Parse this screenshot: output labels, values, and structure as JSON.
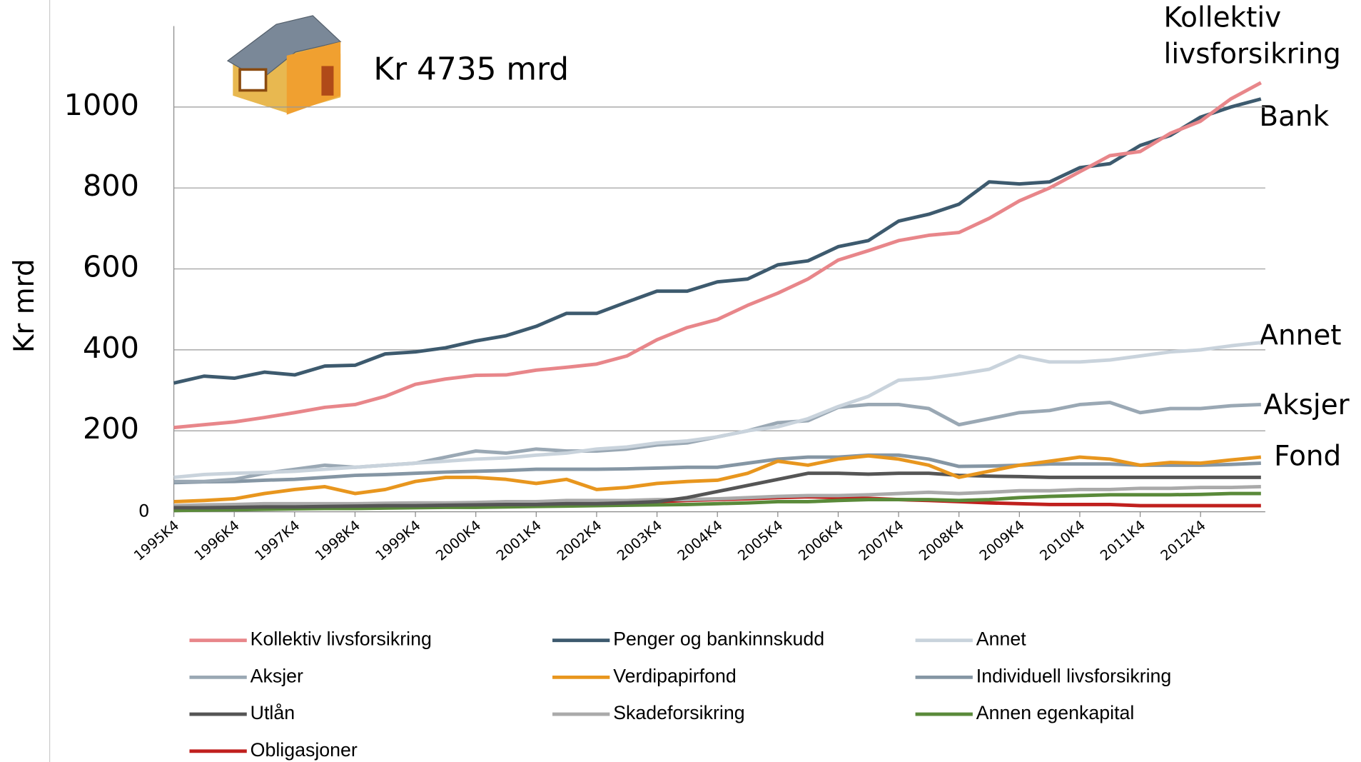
{
  "chart_data": {
    "type": "line",
    "y_label": "Kr mrd",
    "annotations": [
      "Kr 4735 mrd",
      "Kollektiv",
      "livsforsikring",
      "Bank",
      "Annet",
      "Aksjer",
      "Fond"
    ],
    "categories": [
      "1995K4",
      null,
      "1996K4",
      null,
      "1997K4",
      null,
      "1998K4",
      null,
      "1999K4",
      null,
      "2000K4",
      null,
      "2001K4",
      null,
      "2002K4",
      null,
      "2003K4",
      null,
      "2004K4",
      null,
      "2005K4",
      null,
      "2006K4",
      null,
      "2007K4",
      null,
      "2008K4",
      null,
      "2009K4",
      null,
      "2010K4",
      null,
      "2011K4",
      null,
      "2012K4",
      null,
      null
    ],
    "ylim": [
      0,
      1200
    ],
    "yticks": [
      0,
      200,
      400,
      600,
      800,
      1000
    ],
    "grid": true,
    "series": [
      {
        "name": "Kollektiv livsforsikring",
        "color": "#e8868a",
        "values": [
          208,
          215,
          222,
          233,
          245,
          258,
          265,
          285,
          315,
          328,
          337,
          338,
          350,
          357,
          365,
          385,
          425,
          455,
          475,
          510,
          540,
          575,
          622,
          645,
          670,
          683,
          690,
          725,
          768,
          800,
          840,
          880,
          890,
          935,
          965,
          1020,
          1060
        ]
      },
      {
        "name": "Penger og bankinnskudd",
        "color": "#3d5a6e",
        "values": [
          318,
          335,
          330,
          345,
          338,
          360,
          362,
          390,
          395,
          405,
          422,
          435,
          458,
          490,
          490,
          518,
          545,
          545,
          568,
          575,
          610,
          620,
          655,
          670,
          718,
          735,
          760,
          815,
          810,
          815,
          850,
          860,
          905,
          930,
          975,
          1000,
          1020
        ]
      },
      {
        "name": "Annet",
        "color": "#c9d3dc",
        "values": [
          85,
          92,
          95,
          97,
          100,
          105,
          110,
          115,
          120,
          125,
          130,
          133,
          140,
          145,
          155,
          160,
          170,
          175,
          185,
          200,
          210,
          230,
          260,
          285,
          325,
          330,
          340,
          352,
          385,
          370,
          370,
          375,
          385,
          395,
          400,
          410,
          418
        ]
      },
      {
        "name": "Aksjer",
        "color": "#9aa8b4",
        "values": [
          75,
          75,
          80,
          95,
          105,
          115,
          110,
          115,
          120,
          135,
          150,
          145,
          155,
          150,
          150,
          155,
          165,
          170,
          185,
          200,
          220,
          225,
          258,
          265,
          265,
          255,
          215,
          230,
          245,
          250,
          265,
          270,
          245,
          255,
          255,
          262,
          265
        ]
      },
      {
        "name": "Verdipapirfond",
        "color": "#e8961e",
        "values": [
          25,
          28,
          32,
          45,
          55,
          62,
          45,
          55,
          75,
          85,
          85,
          80,
          70,
          80,
          55,
          60,
          70,
          75,
          78,
          95,
          125,
          115,
          130,
          138,
          130,
          115,
          85,
          100,
          115,
          125,
          135,
          130,
          115,
          122,
          120,
          128,
          135
        ]
      },
      {
        "name": "Individuell livsforsikring",
        "color": "#8596a4",
        "values": [
          72,
          74,
          75,
          78,
          80,
          85,
          90,
          92,
          95,
          98,
          100,
          102,
          105,
          105,
          105,
          106,
          108,
          110,
          110,
          120,
          130,
          135,
          135,
          140,
          140,
          130,
          112,
          113,
          115,
          118,
          118,
          118,
          115,
          115,
          115,
          117,
          120
        ]
      },
      {
        "name": "Utlån",
        "color": "#555555",
        "values": [
          10,
          10,
          11,
          12,
          12,
          13,
          14,
          15,
          15,
          16,
          17,
          18,
          18,
          20,
          20,
          22,
          25,
          35,
          50,
          65,
          80,
          95,
          95,
          93,
          95,
          95,
          90,
          88,
          87,
          85,
          85,
          85,
          85,
          85,
          85,
          85,
          85
        ]
      },
      {
        "name": "Skadeforsikring",
        "color": "#aaaaaa",
        "values": [
          15,
          17,
          18,
          20,
          20,
          20,
          20,
          21,
          22,
          22,
          23,
          25,
          25,
          28,
          28,
          28,
          30,
          30,
          32,
          35,
          38,
          40,
          40,
          42,
          45,
          48,
          45,
          48,
          52,
          52,
          55,
          55,
          58,
          58,
          60,
          60,
          62
        ]
      },
      {
        "name": "Annen egenkapital",
        "color": "#5a8a3a",
        "values": [
          3,
          4,
          5,
          6,
          7,
          8,
          8,
          9,
          10,
          11,
          11,
          12,
          13,
          14,
          15,
          16,
          17,
          18,
          20,
          22,
          25,
          25,
          28,
          30,
          30,
          30,
          28,
          30,
          35,
          38,
          40,
          42,
          42,
          42,
          43,
          45,
          45
        ]
      },
      {
        "name": "Obligasjoner",
        "color": "#c0201e",
        "values": [
          8,
          8,
          9,
          10,
          10,
          10,
          10,
          11,
          12,
          13,
          15,
          16,
          18,
          20,
          20,
          22,
          25,
          28,
          30,
          32,
          35,
          37,
          35,
          33,
          30,
          28,
          25,
          22,
          20,
          18,
          18,
          18,
          15,
          15,
          15,
          15,
          15
        ]
      }
    ]
  }
}
